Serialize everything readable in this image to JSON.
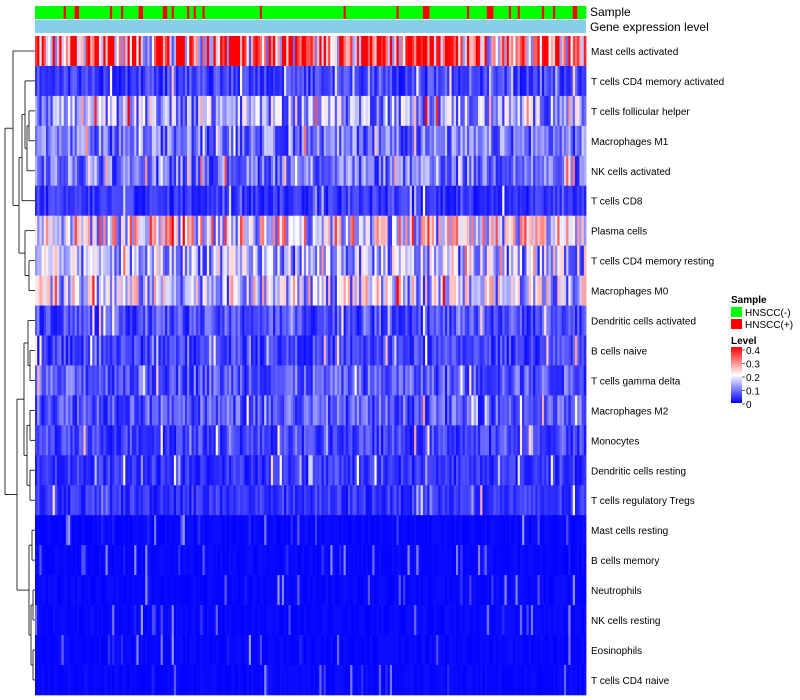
{
  "chart_data": {
    "type": "heatmap",
    "title": "",
    "annotation_tracks": [
      "Sample",
      "Gene expression level"
    ],
    "rows": [
      "Mast cells activated",
      "T cells CD4 memory activated",
      "T cells follicular helper",
      "Macrophages M1",
      "NK cells activated",
      "T cells CD8",
      "Plasma cells",
      "T cells CD4 memory resting",
      "Macrophages M0",
      "Dendritic cells activated",
      "B cells naive",
      "T cells gamma delta",
      "Macrophages M2",
      "Monocytes",
      "Dendritic cells resting",
      "T cells regulatory  Tregs",
      "Mast cells resting",
      "B cells memory",
      "Neutrophils",
      "NK cells resting",
      "Eosinophils",
      "T cells CD4 naive"
    ],
    "row_mean_levels": [
      0.3,
      0.05,
      0.13,
      0.09,
      0.09,
      0.04,
      0.2,
      0.13,
      0.16,
      0.06,
      0.05,
      0.07,
      0.07,
      0.05,
      0.04,
      0.04,
      0.01,
      0.01,
      0.01,
      0.01,
      0.01,
      0.01
    ],
    "columns_count": 250,
    "legend": {
      "sample_title": "Sample",
      "sample_entries": [
        {
          "label": "HNSCC(-)",
          "color": "#00ff00"
        },
        {
          "label": "HNSCC(+)",
          "color": "#ff0000"
        }
      ],
      "level_title": "Level",
      "level_ticks": [
        "0.4",
        "0.3",
        "0.2",
        "0.1",
        "0"
      ],
      "level_range": [
        0,
        0.4
      ]
    },
    "colors": {
      "low": "#0000ff",
      "mid": "#ffffff",
      "high": "#ff0000",
      "gene_track": "#87ceeb",
      "dendrogram": "#000000"
    }
  }
}
